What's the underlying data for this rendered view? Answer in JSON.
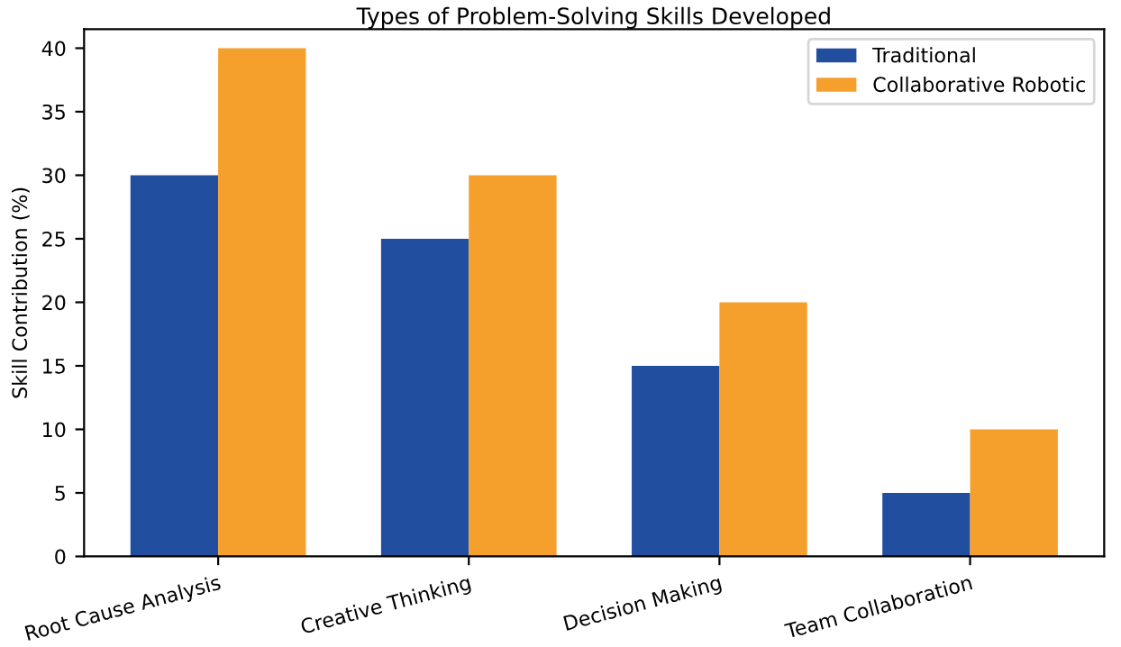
{
  "chart_data": {
    "type": "bar",
    "title": "Types of Problem-Solving Skills Developed",
    "ylabel": "Skill Contribution (%)",
    "categories": [
      "Root Cause Analysis",
      "Creative Thinking",
      "Decision Making",
      "Team Collaboration"
    ],
    "series": [
      {
        "name": "Traditional",
        "color": "#224ea0",
        "values": [
          30,
          25,
          15,
          5
        ]
      },
      {
        "name": "Collaborative Robotic",
        "color": "#f5a02c",
        "values": [
          40,
          30,
          20,
          10
        ]
      }
    ],
    "ylim": [
      0,
      41.5
    ],
    "yticks": [
      0,
      5,
      10,
      15,
      20,
      25,
      30,
      35,
      40
    ],
    "legend": "top right",
    "grid": false
  }
}
